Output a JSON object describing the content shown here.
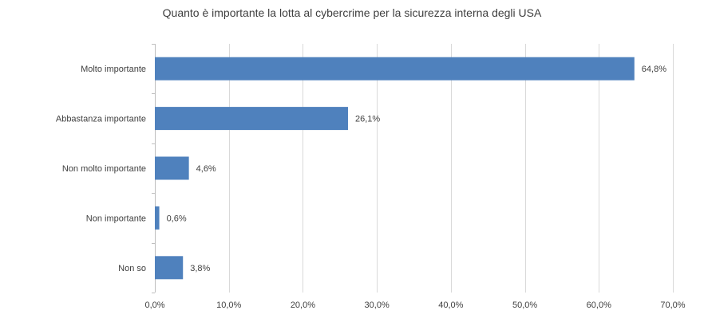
{
  "chart_data": {
    "type": "bar",
    "orientation": "horizontal",
    "title": "Quanto è importante la lotta al cybercrime per la sicurezza interna degli USA",
    "categories": [
      "Molto importante",
      "Abbastanza importante",
      "Non molto importante",
      "Non importante",
      "Non so"
    ],
    "values": [
      64.8,
      26.1,
      4.6,
      0.6,
      3.8
    ],
    "value_labels": [
      "64,8%",
      "26,1%",
      "4,6%",
      "0,6%",
      "3,8%"
    ],
    "xlim": [
      0,
      70
    ],
    "xticks": [
      0,
      10,
      20,
      30,
      40,
      50,
      60,
      70
    ],
    "xtick_labels": [
      "0,0%",
      "10,0%",
      "20,0%",
      "30,0%",
      "40,0%",
      "50,0%",
      "60,0%",
      "70,0%"
    ],
    "xlabel": "",
    "ylabel": "",
    "grid": true,
    "legend": "none",
    "bar_color": "#4f81bd"
  }
}
